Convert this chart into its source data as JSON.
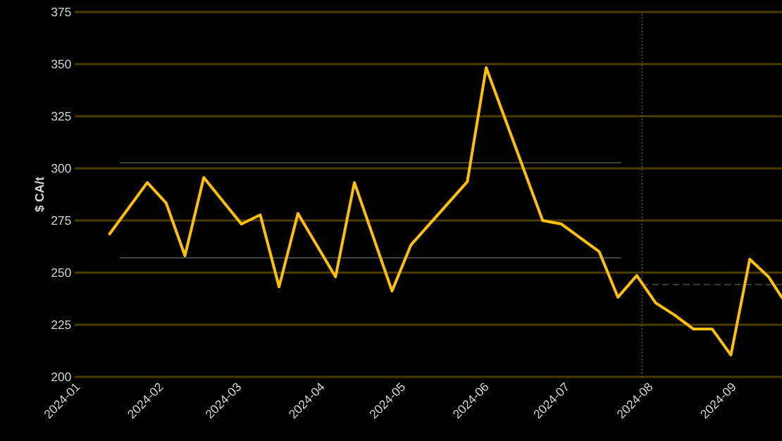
{
  "chart_data": {
    "type": "line",
    "ylabel": "$ CA/t",
    "xlim": [
      "2024-01-01",
      "2024-09-20"
    ],
    "ylim": [
      200,
      375
    ],
    "xticks": [
      "2024-01",
      "2024-02",
      "2024-03",
      "2024-04",
      "2024-05",
      "2024-06",
      "2024-07",
      "2024-08",
      "2024-09"
    ],
    "yticks": [
      200,
      225,
      250,
      275,
      300,
      325,
      350,
      375
    ],
    "grid": "y",
    "marker": "none",
    "series": [
      {
        "color": "#ffc000",
        "line_style": "solid",
        "x": [
          "2024-01-14",
          "2024-01-28",
          "2024-02-04",
          "2024-02-11",
          "2024-02-18",
          "2024-03-03",
          "2024-03-10",
          "2024-03-17",
          "2024-03-24",
          "2024-04-07",
          "2024-04-14",
          "2024-04-28",
          "2024-05-05",
          "2024-05-26",
          "2024-06-02",
          "2024-06-23",
          "2024-06-30",
          "2024-07-14",
          "2024-07-21",
          "2024-07-28",
          "2024-08-04",
          "2024-08-11",
          "2024-08-18",
          "2024-08-25",
          "2024-09-01",
          "2024-09-08",
          "2024-09-15",
          "2024-09-20"
        ],
        "values": [
          268.6,
          293.2,
          283.4,
          258.1,
          295.6,
          273.3,
          277.7,
          243.2,
          278.4,
          248,
          293.2,
          241.2,
          263.2,
          293.6,
          348.3,
          275,
          273.3,
          260.1,
          238.2,
          248.6,
          235.5,
          229.7,
          223,
          223,
          210.5,
          256.4,
          248,
          238
        ]
      },
      {
        "color": "#404040",
        "line_style": "solid",
        "x": [
          "2024-01-18",
          "2024-07-22"
        ],
        "values": [
          302.7,
          302.7
        ]
      },
      {
        "color": "#404040",
        "line_style": "solid",
        "x": [
          "2024-01-18",
          "2024-07-22"
        ],
        "values": [
          257.1,
          257.1
        ]
      },
      {
        "color": "#404040",
        "line_style": "dashed",
        "x": [
          "2024-07-30",
          "2024-09-20"
        ],
        "values": [
          244.3,
          244.3
        ]
      }
    ],
    "ref_lines": [
      {
        "axis": "x",
        "value": "2024-07-30",
        "color": "#707070",
        "line_style": "dotted"
      }
    ]
  }
}
